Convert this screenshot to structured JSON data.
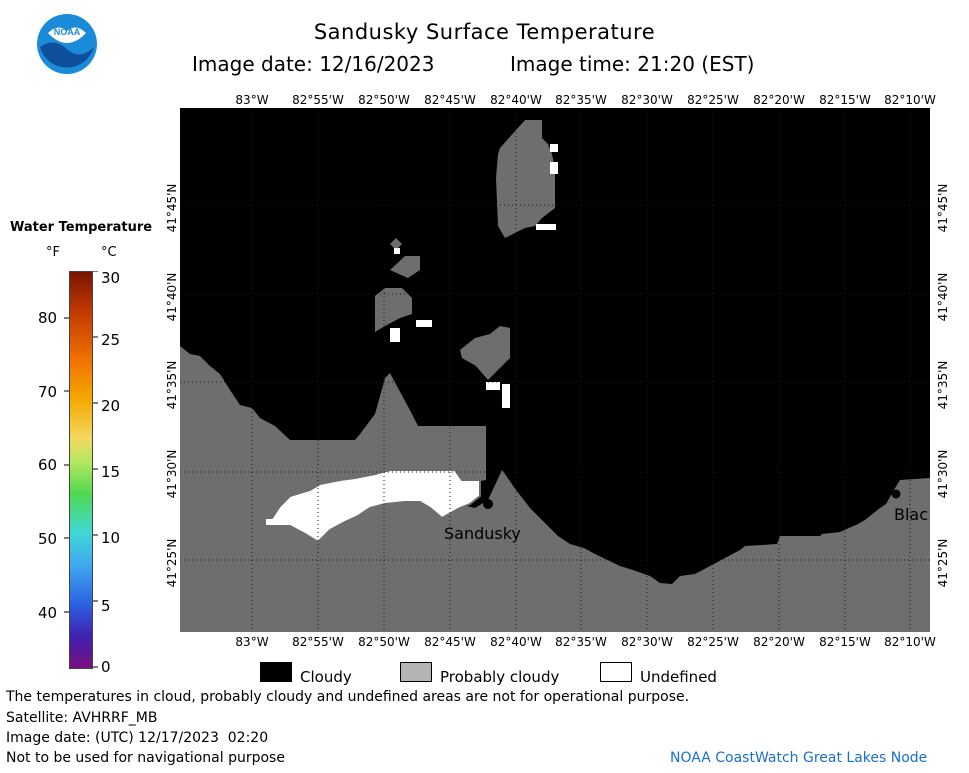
{
  "header": {
    "title": "Sandusky Surface Temperature",
    "date_label": "Image date: 12/16/2023",
    "time_label": "Image time: 21:20 (EST)"
  },
  "logo": {
    "text": "NOAA"
  },
  "longitude_labels": [
    "83°W",
    "82°55'W",
    "82°50'W",
    "82°45'W",
    "82°40'W",
    "82°35'W",
    "82°30'W",
    "82°25'W",
    "82°20'W",
    "82°15'W",
    "82°10'W"
  ],
  "latitude_labels": [
    "41°45'N",
    "41°40'N",
    "41°35'N",
    "41°30'N",
    "41°25'N"
  ],
  "colorbar": {
    "title": "Water Temperature",
    "unit_f": "°F",
    "unit_c": "°C",
    "f_ticks": [
      "80",
      "70",
      "60",
      "50",
      "40"
    ],
    "c_ticks": [
      "30",
      "25",
      "20",
      "15",
      "10",
      "5",
      "0"
    ]
  },
  "places": {
    "sandusky": "Sandusky",
    "black": "Blac"
  },
  "legend": {
    "cloudy": "Cloudy",
    "probably_cloudy": "Probably cloudy",
    "undefined": "Undefined"
  },
  "colors": {
    "cloudy": "#000000",
    "probably_cloudy": "#6e6e6e",
    "undefined": "#ffffff",
    "logo_blue": "#1a8bd8"
  },
  "footer": {
    "disclaimer": "The temperatures in cloud, probably cloudy and undefined areas are not for operational purpose.",
    "satellite": "Satellite: AVHRRF_MB",
    "utc_date": "Image date: (UTC) 12/17/2023  02:20",
    "navigation": "Not to be used for navigational purpose",
    "credit": "NOAA CoastWatch Great Lakes Node"
  }
}
